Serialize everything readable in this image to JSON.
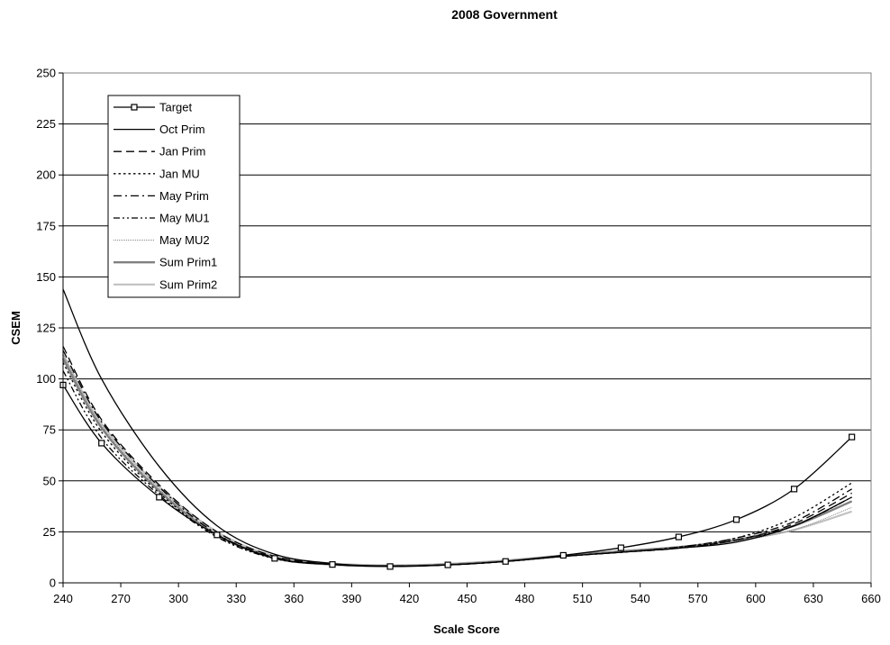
{
  "chart_data": {
    "type": "line",
    "title": "2008 Government",
    "xlabel": "Scale Score",
    "ylabel": "CSEM",
    "xlim": [
      240,
      660
    ],
    "ylim": [
      0,
      250
    ],
    "x_ticks": [
      "240",
      "270",
      "300",
      "330",
      "360",
      "390",
      "420",
      "450",
      "480",
      "510",
      "540",
      "570",
      "600",
      "630",
      "660"
    ],
    "y_ticks": [
      "0",
      "25",
      "50",
      "75",
      "100",
      "125",
      "150",
      "175",
      "200",
      "225",
      "250"
    ],
    "grid": "horizontal",
    "legend_position": "top-left",
    "x": [
      240,
      260,
      290,
      320,
      350,
      380,
      410,
      440,
      470,
      500,
      530,
      560,
      590,
      620,
      650
    ],
    "series": [
      {
        "name": "Target",
        "style": "solid-marker",
        "color": "#000000",
        "values": [
          97,
          68.5,
          42,
          23.5,
          12,
          9,
          8,
          8.8,
          10.5,
          13.5,
          17.2,
          22.5,
          31,
          46,
          71.5
        ]
      },
      {
        "name": "Oct Prim",
        "style": "solid",
        "color": "#000000",
        "values": [
          144,
          100,
          57,
          28,
          14,
          9.5,
          8.2,
          8.8,
          10.5,
          13,
          15,
          17,
          20,
          28,
          42
        ]
      },
      {
        "name": "Jan Prim",
        "style": "dash",
        "color": "#000000",
        "values": [
          116,
          80,
          48,
          25,
          13,
          9.2,
          8.2,
          8.8,
          10.5,
          13,
          15,
          17,
          21,
          29,
          44
        ]
      },
      {
        "name": "Jan MU",
        "style": "dot",
        "color": "#000000",
        "values": [
          108,
          74,
          44,
          23,
          12,
          9,
          8.2,
          8.8,
          10.5,
          13,
          15,
          17.5,
          22,
          32,
          49
        ]
      },
      {
        "name": "May Prim",
        "style": "dashdot",
        "color": "#000000",
        "values": [
          114,
          79,
          47,
          24,
          12.5,
          9,
          8.2,
          8.8,
          10.5,
          13,
          15,
          17.5,
          22,
          30,
          46
        ]
      },
      {
        "name": "May MU1",
        "style": "dashdotdot",
        "color": "#000000",
        "values": [
          104,
          71,
          43,
          22.5,
          11.8,
          9,
          8.2,
          8.8,
          10.5,
          13,
          15,
          17,
          21,
          28,
          42
        ]
      },
      {
        "name": "May MU2",
        "style": "thin-dot",
        "color": "#808080",
        "values": [
          112,
          77,
          46,
          24,
          12.5,
          9,
          8.3,
          9,
          10.7,
          13,
          15,
          17,
          20.5,
          26,
          37
        ]
      },
      {
        "name": "Sum Prim1",
        "style": "thick",
        "color": "#808080",
        "values": [
          110,
          76,
          45,
          23.5,
          12.2,
          9,
          8.3,
          9,
          10.7,
          13.2,
          15.5,
          17.5,
          21,
          28,
          40
        ]
      },
      {
        "name": "Sum Prim2",
        "style": "thick-light",
        "color": "#c0c0c0",
        "values": [
          112,
          78,
          47,
          25,
          13,
          9.5,
          8.6,
          9.3,
          11,
          13.5,
          15.5,
          17.5,
          21,
          26,
          35
        ]
      }
    ]
  }
}
